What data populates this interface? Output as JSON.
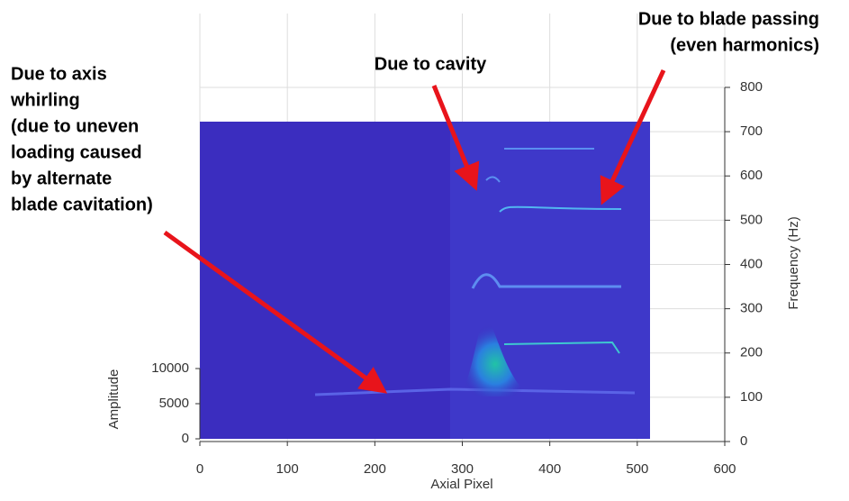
{
  "chart_data": {
    "type": "waterfall",
    "xlabel": "Axial Pixel",
    "ylabel": "Frequency (Hz)",
    "zlabel": "Amplitude",
    "xlim": [
      0,
      600
    ],
    "xticks": [
      0,
      100,
      200,
      300,
      400,
      500,
      600
    ],
    "ylim": [
      0,
      800
    ],
    "yticks": [
      0,
      100,
      200,
      300,
      400,
      500,
      600,
      700,
      800
    ],
    "zlim": [
      0,
      10000
    ],
    "zticks": [
      0,
      5000,
      10000
    ],
    "grid": true,
    "annotations": [
      {
        "lines": [
          "Due to axis",
          "whirling",
          "(due to uneven",
          "loading caused",
          "by alternate",
          "blade cavitation)"
        ]
      },
      {
        "lines": [
          "Due to cavity"
        ]
      },
      {
        "lines": [
          "Due to blade passing",
          "(even harmonics)"
        ]
      }
    ]
  }
}
